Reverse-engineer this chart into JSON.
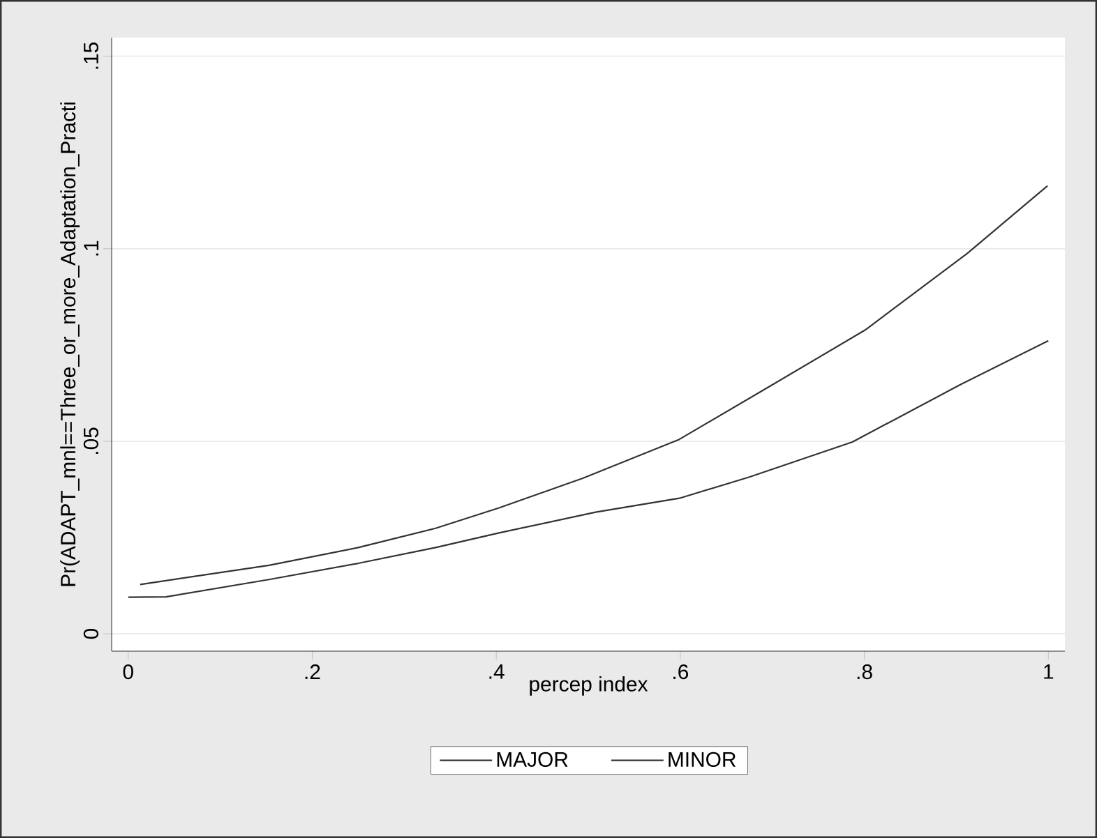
{
  "chart_data": {
    "type": "line",
    "xlabel": "percep index",
    "ylabel": "Pr(ADAPT_mnl==Three_or_more_Adaptation_Practi",
    "xlim": [
      -0.018,
      1.018
    ],
    "ylim": [
      -0.0045,
      0.1548
    ],
    "xticks": [
      0,
      {
        "value": 0.2,
        "label": ".2"
      },
      {
        "value": 0.4,
        "label": ".4"
      },
      {
        "value": 0.6,
        "label": ".6"
      },
      {
        "value": 0.8,
        "label": ".8"
      },
      1
    ],
    "yticks": [
      0,
      {
        "value": 0.05,
        "label": ".05"
      },
      {
        "value": 0.1,
        "label": ".1"
      },
      {
        "value": 0.15,
        "label": ".15"
      }
    ],
    "grid": "y",
    "legend": "bottom",
    "marker": "none",
    "line_style": "solid",
    "series": [
      {
        "name": "MAJOR",
        "color": "#333333",
        "x": [
          0.013,
          0.153,
          0.25,
          0.334,
          0.403,
          0.494,
          0.599,
          0.689,
          0.801,
          0.912,
          0.999
        ],
        "values": [
          0.0128,
          0.0178,
          0.0224,
          0.0274,
          0.0327,
          0.0404,
          0.0505,
          0.0631,
          0.0789,
          0.0988,
          0.1163
        ]
      },
      {
        "name": "MINOR",
        "color": "#333333",
        "x": [
          0,
          0.041,
          0.153,
          0.25,
          0.334,
          0.403,
          0.508,
          0.599,
          0.675,
          0.787,
          0.905,
          1.0
        ],
        "values": [
          0.0095,
          0.0096,
          0.0141,
          0.0183,
          0.0224,
          0.0262,
          0.0316,
          0.0352,
          0.0407,
          0.0498,
          0.0648,
          0.0761
        ]
      }
    ]
  }
}
